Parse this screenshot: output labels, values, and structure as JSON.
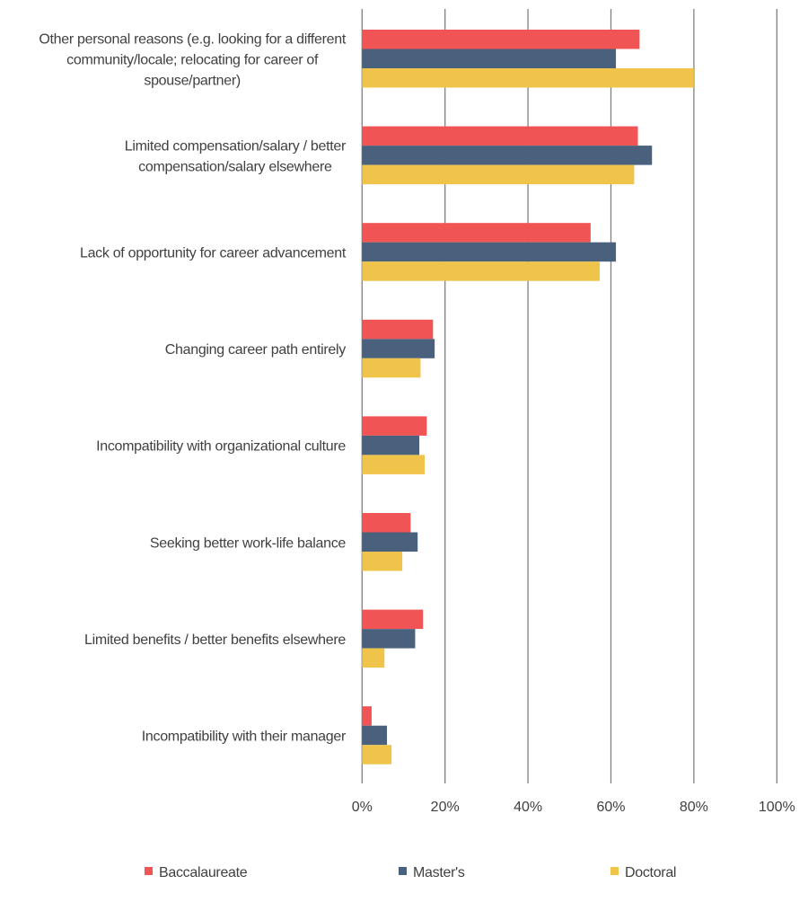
{
  "chart_data": {
    "type": "bar",
    "orientation": "horizontal",
    "categories": [
      [
        "Other personal reasons (e.g. looking for a different",
        "community/locale; relocating for career of",
        "spouse/partner)"
      ],
      [
        "Limited compensation/salary / better",
        "compensation/salary elsewhere"
      ],
      [
        "Lack of opportunity for career advancement"
      ],
      [
        "Changing career path entirely"
      ],
      [
        "Incompatibility with organizational culture"
      ],
      [
        "Seeking better work-life balance"
      ],
      [
        "Limited benefits / better benefits elsewhere"
      ],
      [
        "Incompatibility with their manager"
      ]
    ],
    "series": [
      {
        "name": "Baccalaureate",
        "color": "#f05454",
        "values": [
          66.9,
          66.5,
          55.1,
          17.1,
          15.6,
          11.7,
          14.7,
          2.3
        ]
      },
      {
        "name": "Master's",
        "color": "#4a617e",
        "values": [
          61.2,
          69.9,
          61.2,
          17.5,
          13.8,
          13.4,
          12.8,
          6.0
        ]
      },
      {
        "name": "Doctoral",
        "color": "#f0c44a",
        "values": [
          80.0,
          65.6,
          57.3,
          14.1,
          15.1,
          9.7,
          5.4,
          7.1
        ]
      }
    ],
    "xlim": [
      0,
      100
    ],
    "x_ticks": [
      0,
      20,
      40,
      60,
      80,
      100
    ],
    "x_tick_labels": [
      "0%",
      "20%",
      "40%",
      "60%",
      "80%",
      "100%"
    ],
    "grid": "vertical",
    "legend_position": "bottom",
    "title": "",
    "xlabel": "",
    "ylabel": ""
  }
}
